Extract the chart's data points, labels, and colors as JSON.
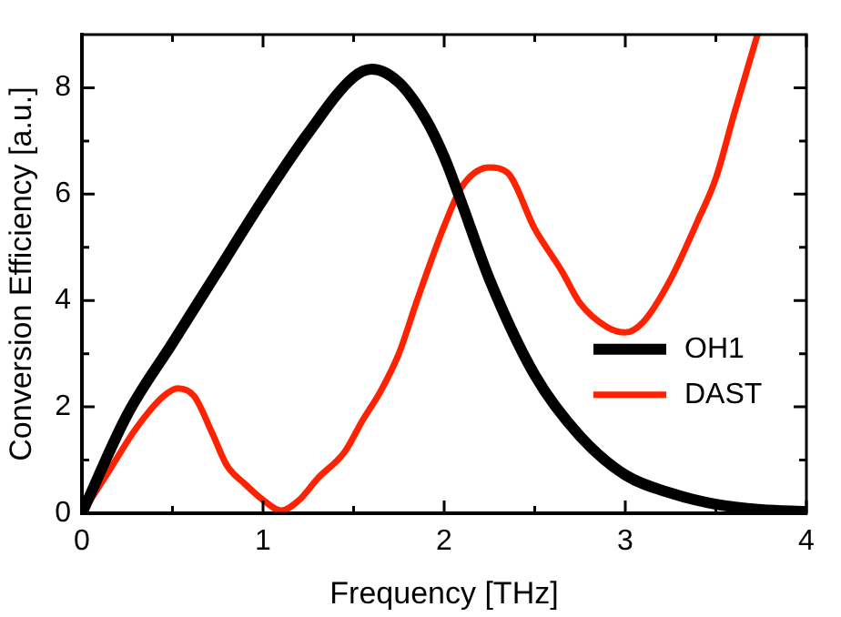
{
  "chart_data": {
    "type": "line",
    "xlabel": "Frequency [THz]",
    "ylabel": "Conversion Efficiency [a.u.]",
    "xlim": [
      0,
      4
    ],
    "ylim": [
      0,
      9
    ],
    "xticks": [
      0,
      {
        "value": 0.5,
        "label": null
      },
      1,
      {
        "value": 1.5,
        "label": null
      },
      2,
      {
        "value": 2.5,
        "label": null
      },
      3,
      {
        "value": 3.5,
        "label": null
      },
      4
    ],
    "yticks": [
      0,
      {
        "value": 1,
        "label": null
      },
      2,
      {
        "value": 3,
        "label": null
      },
      4,
      {
        "value": 5,
        "label": null
      },
      6,
      {
        "value": 7,
        "label": null
      },
      8
    ],
    "grid": false,
    "legend": "right",
    "marker": "none",
    "line_style": "solid",
    "series": [
      {
        "name": "OH1",
        "color": "#000000",
        "x": [
          0,
          0.25,
          0.5,
          0.75,
          1,
          1.25,
          1.5,
          1.6,
          1.75,
          1.9,
          2,
          2.1,
          2.25,
          2.5,
          2.75,
          3,
          3.25,
          3.5,
          3.75,
          4
        ],
        "values": [
          0,
          1.85,
          3.2,
          4.55,
          5.9,
          7.15,
          8.2,
          8.35,
          8.1,
          7.4,
          6.7,
          5.8,
          4.4,
          2.6,
          1.45,
          0.72,
          0.38,
          0.17,
          0.07,
          0.03
        ]
      },
      {
        "name": "DAST",
        "color": "#ff2200",
        "x": [
          0,
          0.15,
          0.3,
          0.45,
          0.53,
          0.62,
          0.72,
          0.8,
          0.9,
          1,
          1.1,
          1.2,
          1.3,
          1.45,
          1.55,
          1.65,
          1.75,
          1.85,
          2,
          2.1,
          2.25,
          2.35,
          2.5,
          2.65,
          2.75,
          2.9,
          3,
          3.1,
          3.25,
          3.4,
          3.5,
          3.6,
          3.73
        ],
        "values": [
          0,
          0.8,
          1.6,
          2.2,
          2.35,
          2.2,
          1.5,
          0.9,
          0.55,
          0.25,
          0.05,
          0.25,
          0.65,
          1.15,
          1.75,
          2.3,
          3,
          4,
          5.4,
          6.15,
          6.5,
          6.4,
          5.35,
          4.55,
          3.95,
          3.5,
          3.4,
          3.6,
          4.4,
          5.5,
          6.3,
          7.5,
          9
        ]
      }
    ]
  }
}
